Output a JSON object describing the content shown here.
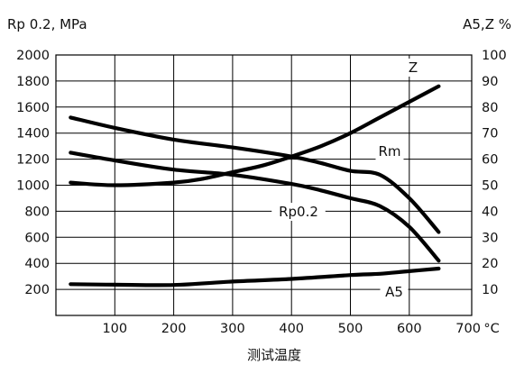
{
  "chart_data": {
    "type": "line",
    "title": "",
    "xlabel": "测试温度",
    "x_unit": "°C",
    "ylabel_left": "Rp 0.2, MPa",
    "ylabel_right": "A5,Z %",
    "xlim": [
      0,
      700
    ],
    "ylim_left": [
      0,
      2000
    ],
    "ylim_right": [
      0,
      100
    ],
    "x_ticks": [
      100,
      200,
      300,
      400,
      500,
      600,
      700
    ],
    "y_ticks_left": [
      200,
      400,
      600,
      800,
      1000,
      1200,
      1400,
      1600,
      1800,
      2000
    ],
    "y_ticks_right": [
      10,
      20,
      30,
      40,
      50,
      60,
      70,
      80,
      90,
      100
    ],
    "grid": true,
    "legend": "none",
    "series": [
      {
        "name": "Rm",
        "axis": "left",
        "x": [
          25,
          100,
          200,
          300,
          400,
          450,
          500,
          550,
          600,
          650
        ],
        "values": [
          1520,
          1440,
          1350,
          1290,
          1220,
          1170,
          1110,
          1080,
          900,
          640
        ]
      },
      {
        "name": "Rp0.2",
        "axis": "left",
        "x": [
          25,
          100,
          200,
          300,
          400,
          450,
          500,
          550,
          600,
          650
        ],
        "values": [
          1250,
          1190,
          1120,
          1080,
          1010,
          960,
          900,
          840,
          680,
          420
        ]
      },
      {
        "name": "Z",
        "axis": "right",
        "x": [
          25,
          100,
          200,
          250,
          300,
          350,
          400,
          450,
          500,
          550,
          600,
          650
        ],
        "values": [
          51,
          50,
          51,
          52.5,
          55,
          57.5,
          61,
          65,
          70,
          76,
          82,
          88
        ]
      },
      {
        "name": "A5",
        "axis": "right",
        "x": [
          25,
          100,
          200,
          300,
          400,
          500,
          550,
          600,
          650
        ],
        "values": [
          12,
          11.8,
          11.7,
          13,
          14,
          15.5,
          16,
          17,
          18
        ]
      }
    ]
  }
}
